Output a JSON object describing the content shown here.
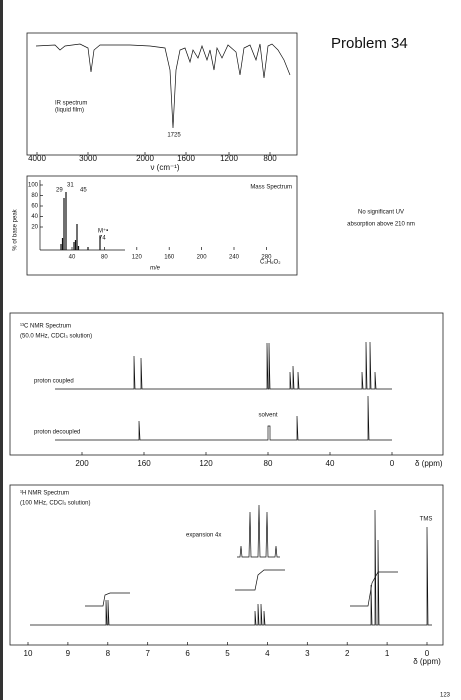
{
  "title": "Problem 34",
  "ir": {
    "label": "IR spectrum",
    "sublabel": "(liquid film)",
    "peak_label": "1725",
    "xticks": [
      "4000",
      "3000",
      "2000",
      "1600",
      "1200",
      "800"
    ],
    "xlabel": "ν (cm⁻¹)"
  },
  "mass": {
    "title": "Mass Spectrum",
    "ylabel": "% of base peak",
    "yticks": [
      "100",
      "80",
      "60",
      "40",
      "20"
    ],
    "peak_labels": [
      "29",
      "31",
      "45",
      "M⁺•",
      "74"
    ],
    "xticks": [
      "40",
      "80",
      "120",
      "160",
      "200",
      "240",
      "280"
    ],
    "xlabel": "m/e",
    "formula": "C₃H₆O₂"
  },
  "uv": {
    "line1": "No significant UV",
    "line2": "absorption above 210 nm"
  },
  "c13": {
    "title": "¹³C NMR Spectrum",
    "subtitle": "(50.0 MHz, CDCl₃ solution)",
    "coupled": "proton coupled",
    "solvent": "solvent",
    "decoupled": "proton decoupled",
    "xticks": [
      "200",
      "160",
      "120",
      "80",
      "40",
      "0"
    ],
    "xlabel": "δ (ppm)"
  },
  "h1": {
    "title": "¹H NMR Spectrum",
    "subtitle": "(100 MHz, CDCl₃ solution)",
    "tms": "TMS",
    "expansion": "expansion  4x",
    "xticks": [
      "10",
      "9",
      "8",
      "7",
      "6",
      "5",
      "4",
      "3",
      "2",
      "1",
      "0"
    ],
    "xlabel": "δ (ppm)"
  },
  "page_number": "123"
}
